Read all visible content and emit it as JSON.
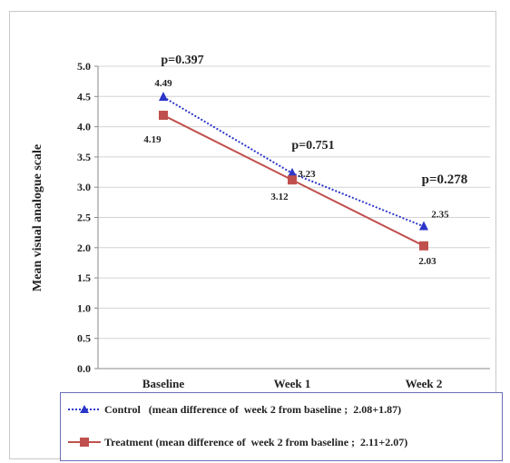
{
  "chart_data": {
    "type": "line",
    "ylabel": "Mean visual analogue scale",
    "xlabel": "",
    "categories": [
      "Baseline",
      "Week 1",
      "Week 2"
    ],
    "ylim": [
      0,
      5
    ],
    "yticks": [
      "0.0",
      "0.5",
      "1.0",
      "1.5",
      "2.0",
      "2.5",
      "3.0",
      "3.5",
      "4.0",
      "4.5",
      "5.0"
    ],
    "grid": true,
    "series": [
      {
        "name": "Control (mean difference of week 2 from baseline ; 2.08+1.87)",
        "values": [
          4.49,
          3.23,
          2.35
        ],
        "labels": [
          "4.49",
          "3.23",
          "2.35"
        ],
        "color": "#2b35c9",
        "line_style": "dotted",
        "marker": "triangle"
      },
      {
        "name": "Treatment (mean difference of week 2 from baseline ; 2.11+2.07)",
        "values": [
          4.19,
          3.12,
          2.03
        ],
        "labels": [
          "4.19",
          "3.12",
          "2.03"
        ],
        "color": "#c0504d",
        "line_style": "solid",
        "marker": "square"
      }
    ],
    "annotations": [
      "p=0.397",
      "p=0.751",
      "p=0.278"
    ],
    "legend_position": "bottom"
  },
  "legend": {
    "control_label": "Control   (mean difference of  week 2 from baseline ;  2.08+1.87)",
    "treatment_label": "Treatment (mean difference of  week 2 from baseline ;  2.11+2.07)"
  },
  "colors": {
    "control": "#2b35c9",
    "treatment": "#c0504d",
    "grid": "#d4d4d4",
    "axis": "#8a8a8a",
    "legend_border": "#6b6fb6"
  }
}
